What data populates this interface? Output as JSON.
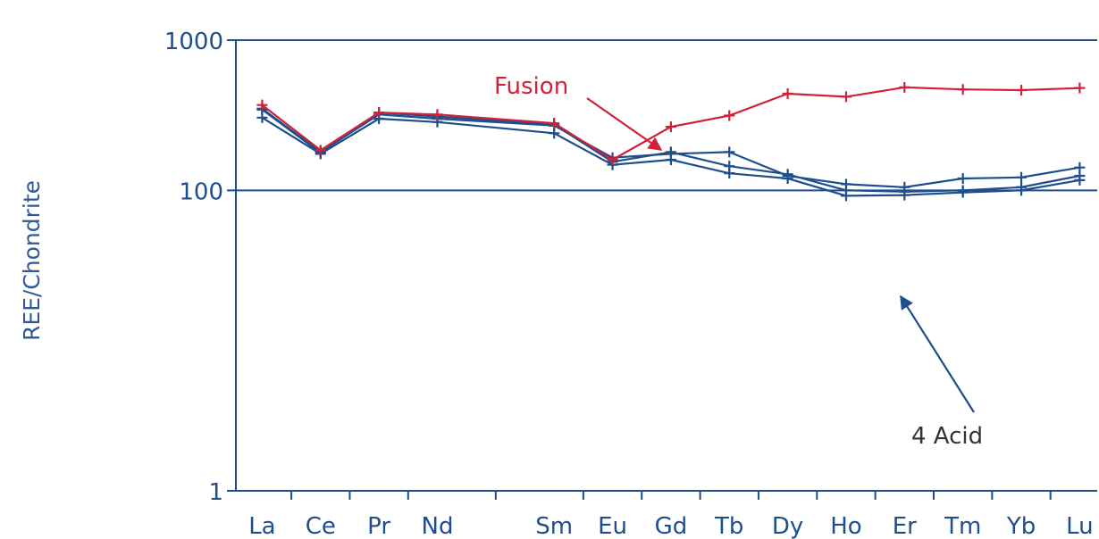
{
  "chart_data": {
    "type": "line",
    "title": "",
    "ylabel": "REE/Chondrite",
    "xlabel": "",
    "y_scale": "log",
    "ylim": [
      1,
      1000
    ],
    "y_ticks": [
      {
        "value": 1,
        "label": "1"
      },
      {
        "value": 100,
        "label": "100"
      },
      {
        "value": 1000,
        "label": "1000"
      }
    ],
    "categories": [
      "La",
      "Ce",
      "Pr",
      "Nd",
      "Sm",
      "Eu",
      "Gd",
      "Tb",
      "Dy",
      "Ho",
      "Er",
      "Tm",
      "Yb",
      "Lu"
    ],
    "x_positions": [
      1,
      2,
      3,
      4,
      6,
      7,
      8,
      9,
      10,
      11,
      12,
      13,
      14,
      15
    ],
    "series": [
      {
        "group": "Fusion",
        "color": "#d0213a",
        "values": [
          370,
          185,
          330,
          320,
          280,
          160,
          265,
          315,
          440,
          420,
          485,
          470,
          465,
          480
        ]
      },
      {
        "group": "4 Acid",
        "color": "#1f4e8c",
        "values": [
          350,
          180,
          320,
          300,
          270,
          165,
          175,
          180,
          125,
          110,
          105,
          120,
          122,
          142
        ]
      },
      {
        "group": "4 Acid",
        "color": "#1f4e8c",
        "values": [
          345,
          178,
          330,
          310,
          275,
          155,
          180,
          145,
          128,
          100,
          98,
          100,
          105,
          125
        ]
      },
      {
        "group": "4 Acid",
        "color": "#1f4e8c",
        "values": [
          305,
          175,
          300,
          285,
          240,
          148,
          160,
          130,
          120,
          92,
          93,
          97,
          100,
          117
        ]
      }
    ],
    "annotations": [
      {
        "text": "Fusion",
        "color": "#d0213a",
        "points_to": "Fusion"
      },
      {
        "text": "4 Acid",
        "color": "#333333",
        "points_to": "4 Acid"
      }
    ],
    "grid": "horizontal line at 100",
    "legend": "none"
  }
}
